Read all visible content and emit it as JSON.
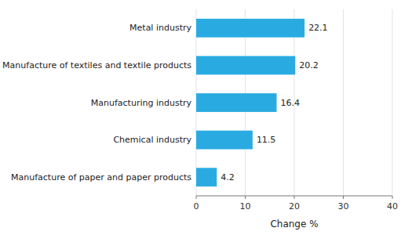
{
  "chart_data": {
    "type": "bar",
    "orientation": "horizontal",
    "categories": [
      "Manufacture of paper and paper products",
      "Chemical industry",
      "Manufacturing industry",
      "Manufacture of textiles and textile products",
      "Metal industry"
    ],
    "values": [
      4.2,
      11.5,
      16.4,
      20.2,
      22.1
    ],
    "data_labels": true,
    "color": "#29abe2",
    "xlabel": "Change %",
    "xlim": [
      0,
      40
    ],
    "xticks": [
      0,
      10,
      20,
      30,
      40
    ],
    "grid": true
  }
}
